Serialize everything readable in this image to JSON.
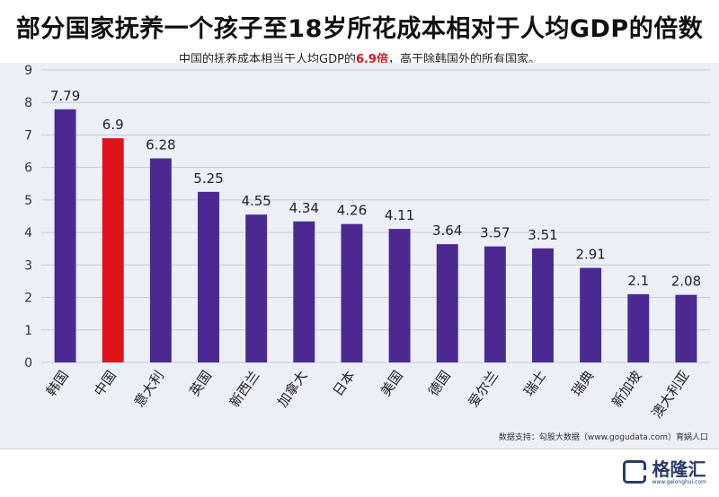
{
  "title": "部分国家抚养一个孩子至18岁所花成本相对于人均GDP的倍数",
  "subtitle": {
    "prefix": "中国的抚养成本相当于人均GDP的",
    "highlight": "6.9倍",
    "suffix": "，高于除韩国外的所有国家。"
  },
  "source": "数据支持：勾股大数据（www.gogudata.com）育娲人口",
  "logo": {
    "text": "格隆汇",
    "url": "www.gelonghui.com"
  },
  "colors": {
    "bar": "#4a2a91",
    "highlight_bar": "#e0131b",
    "panel": "#eceff6"
  },
  "chart_data": {
    "type": "bar",
    "title": "部分国家抚养一个孩子至18岁所花成本相对于人均GDP的倍数",
    "categories": [
      "韩国",
      "中国",
      "意大利",
      "英国",
      "新西兰",
      "加拿大",
      "日本",
      "美国",
      "德国",
      "爱尔兰",
      "瑞士",
      "瑞典",
      "新加坡",
      "澳大利亚"
    ],
    "values": [
      7.79,
      6.9,
      6.28,
      5.25,
      4.55,
      4.34,
      4.26,
      4.11,
      3.64,
      3.57,
      3.51,
      2.91,
      2.1,
      2.08
    ],
    "data_labels": [
      "7.79",
      "6.9",
      "6.28",
      "5.25",
      "4.55",
      "4.34",
      "4.26",
      "4.11",
      "3.64",
      "3.57",
      "3.51",
      "2.91",
      "2.1",
      "2.08"
    ],
    "highlight_category": "中国",
    "ylim": [
      0,
      9
    ],
    "yticks": [
      0,
      1,
      2,
      3,
      4,
      5,
      6,
      7,
      8,
      9
    ],
    "grid": true,
    "xlabel": "",
    "ylabel": ""
  }
}
